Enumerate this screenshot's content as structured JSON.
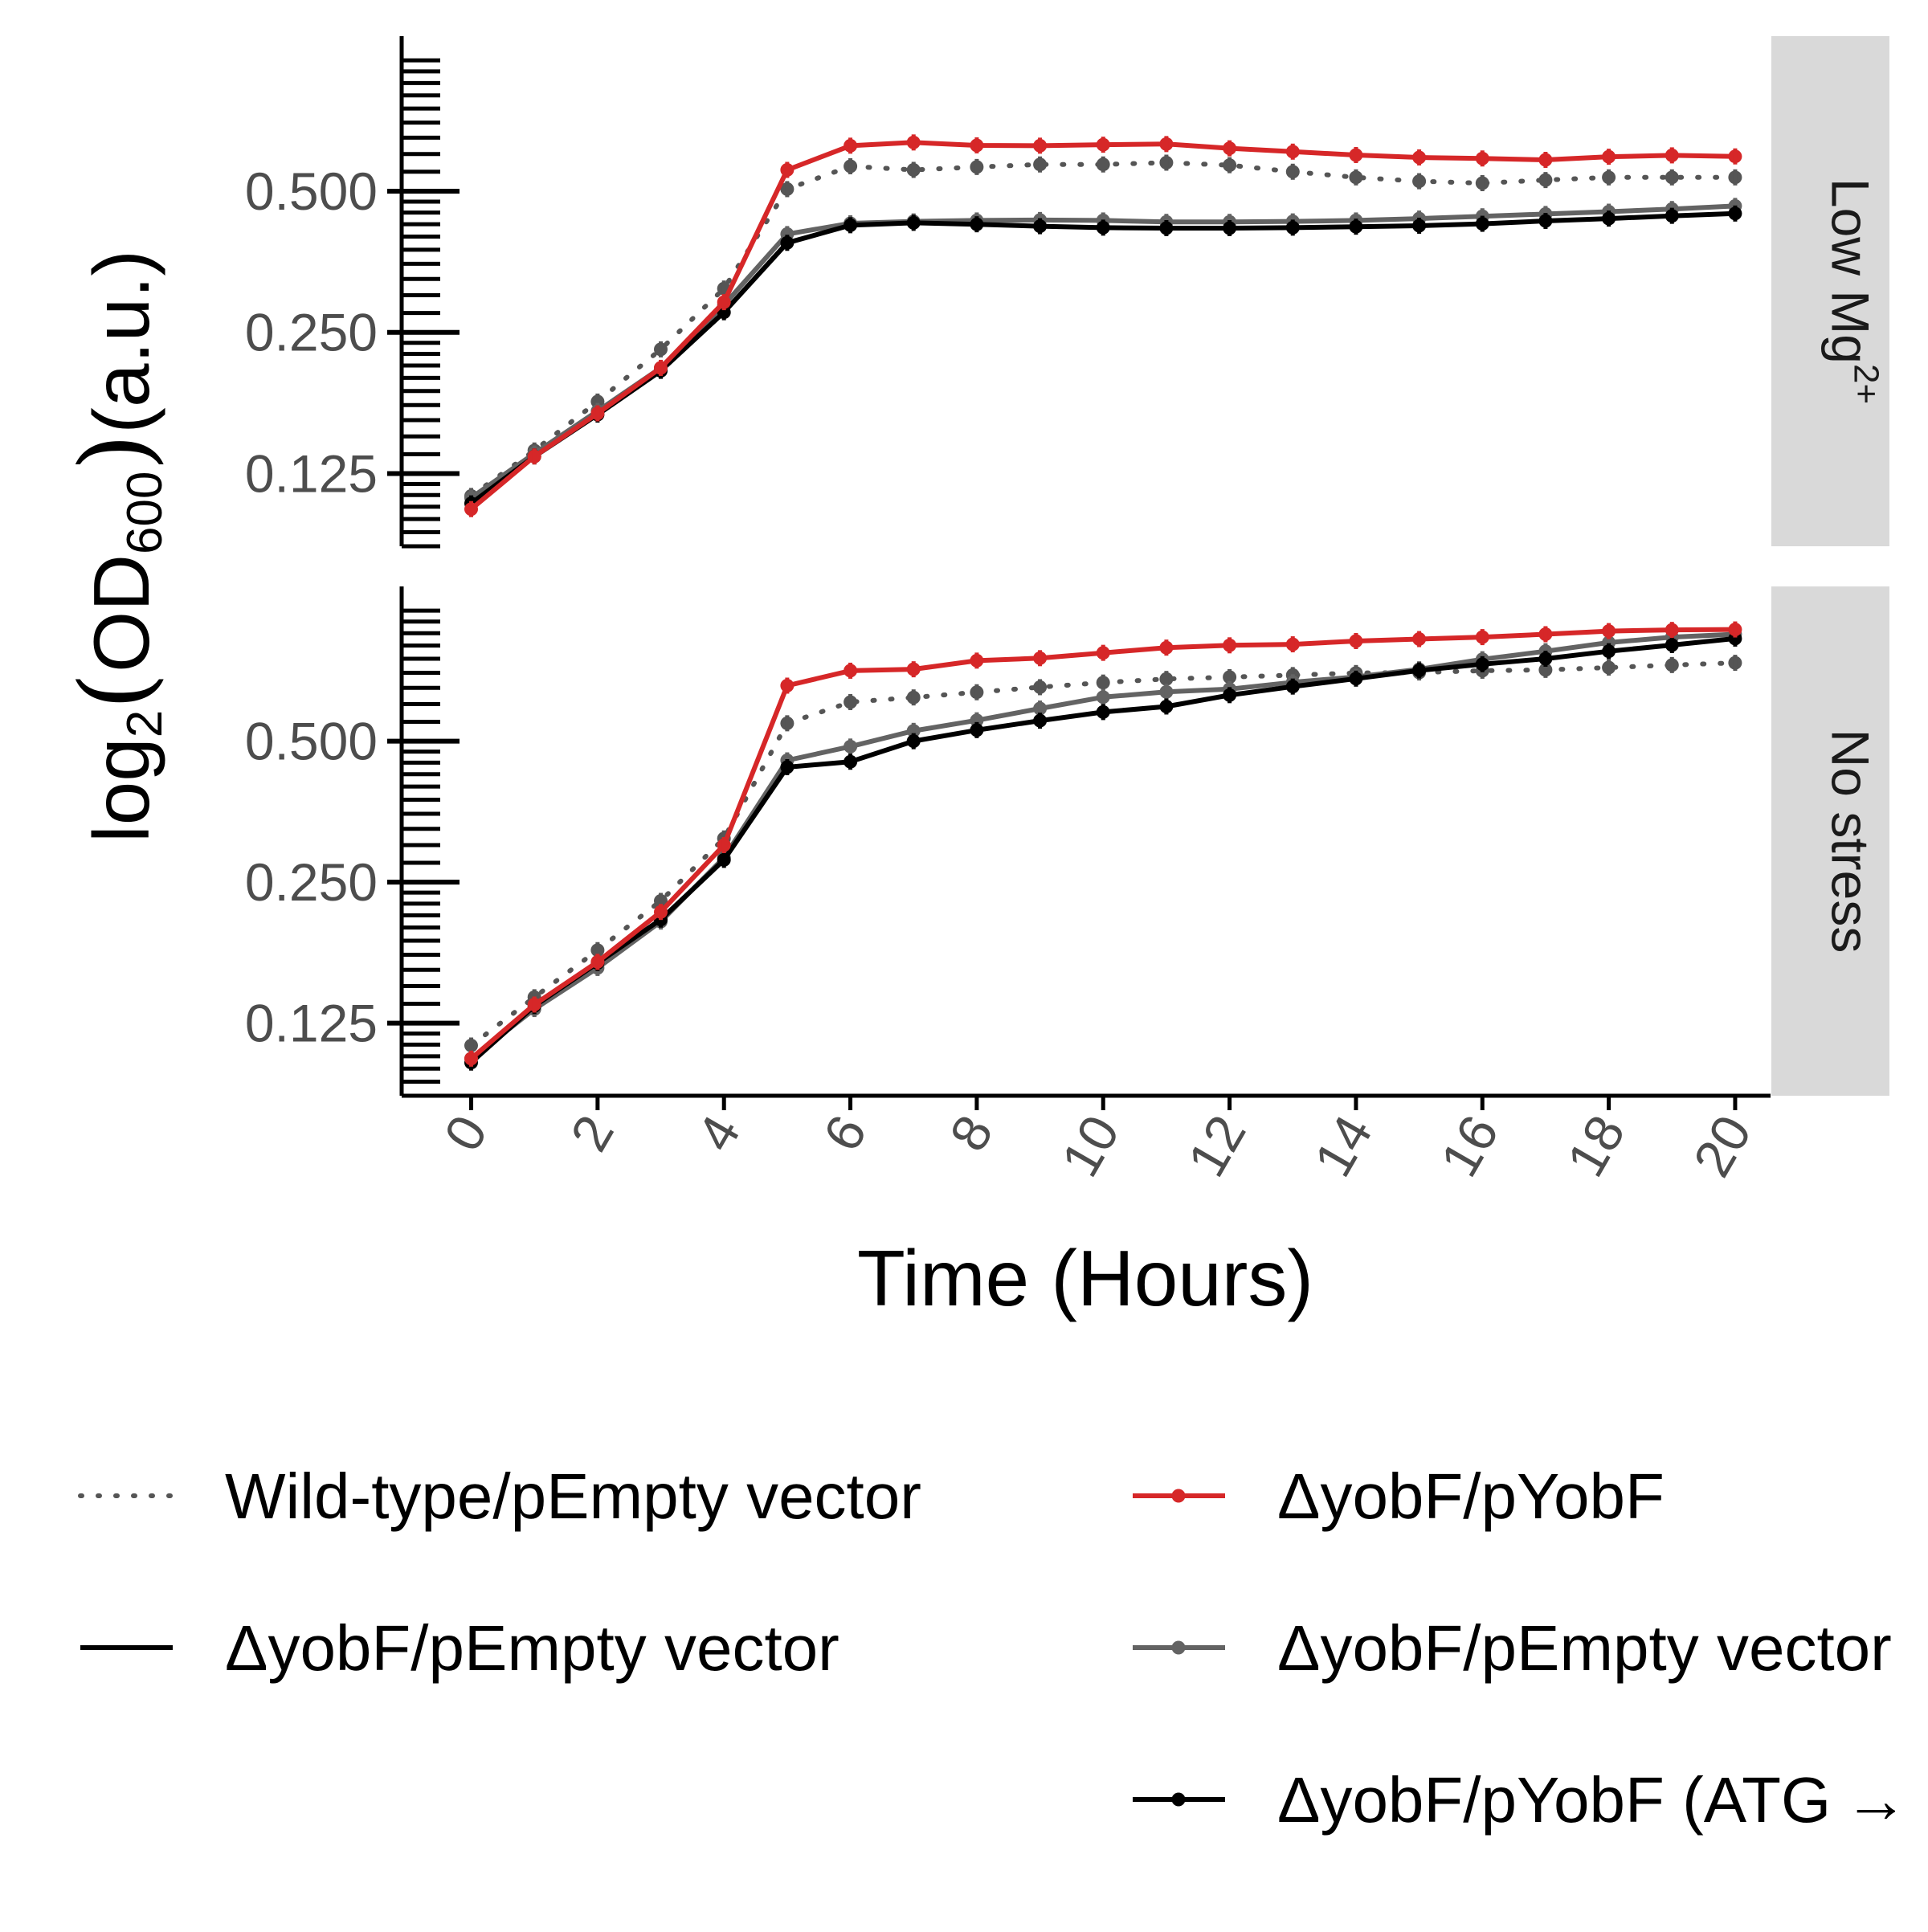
{
  "chart_data": {
    "type": "line",
    "x_title": "Time (Hours)",
    "y_title": {
      "prefix": "log",
      "prefix_sub": "2",
      "open": "(",
      "main": "OD",
      "main_sub": "600",
      "close": ")",
      "unit": "(a.u.)"
    },
    "x_ticks": [
      "0",
      "2",
      "4",
      "6",
      "8",
      "10",
      "12",
      "14",
      "16",
      "18",
      "20"
    ],
    "x_range": [
      -1.1,
      20.56
    ],
    "y_scale": "log2",
    "y_ticks": [
      "0.500",
      "0.250",
      "0.125"
    ],
    "y_tick_values": [
      0.5,
      0.25,
      0.125
    ],
    "grid": false,
    "legend_position": "bottom",
    "facets": [
      {
        "label": "Low Mg",
        "label_sup": "2+",
        "y_range": [
          0.0875,
          1.07
        ],
        "series": [
          {
            "key": "wt",
            "x": [
              0,
              1,
              2,
              3,
              4,
              5,
              6,
              7,
              8,
              9,
              10,
              11,
              12,
              13,
              14,
              15,
              16,
              17,
              18,
              19,
              20
            ],
            "values": [
              0.112,
              0.14,
              0.178,
              0.23,
              0.31,
              0.505,
              0.565,
              0.555,
              0.563,
              0.57,
              0.57,
              0.575,
              0.568,
              0.55,
              0.535,
              0.525,
              0.52,
              0.528,
              0.535,
              0.535,
              0.535
            ]
          },
          {
            "key": "pyobf",
            "x": [
              0,
              1,
              2,
              3,
              4,
              5,
              6,
              7,
              8,
              9,
              10,
              11,
              12,
              13,
              14,
              15,
              16,
              17,
              18,
              19,
              20
            ],
            "values": [
              0.105,
              0.136,
              0.168,
              0.21,
              0.29,
              0.555,
              0.625,
              0.635,
              0.626,
              0.625,
              0.628,
              0.63,
              0.617,
              0.607,
              0.597,
              0.59,
              0.587,
              0.583,
              0.592,
              0.596,
              0.593
            ]
          },
          {
            "key": "empty_gray",
            "x": [
              0,
              1,
              2,
              3,
              4,
              5,
              6,
              7,
              8,
              9,
              10,
              11,
              12,
              13,
              14,
              15,
              16,
              17,
              18,
              19,
              20
            ],
            "values": [
              0.111,
              0.138,
              0.17,
              0.21,
              0.286,
              0.405,
              0.427,
              0.431,
              0.433,
              0.434,
              0.433,
              0.43,
              0.43,
              0.431,
              0.433,
              0.437,
              0.442,
              0.447,
              0.452,
              0.458,
              0.465
            ]
          },
          {
            "key": "atg",
            "x": [
              0,
              1,
              2,
              3,
              4,
              5,
              6,
              7,
              8,
              9,
              10,
              11,
              12,
              13,
              14,
              15,
              16,
              17,
              18,
              19,
              20
            ],
            "values": [
              0.108,
              0.136,
              0.167,
              0.207,
              0.276,
              0.388,
              0.423,
              0.428,
              0.425,
              0.421,
              0.418,
              0.417,
              0.417,
              0.418,
              0.42,
              0.422,
              0.426,
              0.432,
              0.437,
              0.443,
              0.448
            ]
          }
        ]
      },
      {
        "label": "No stress",
        "label_sup": "",
        "y_range": [
          0.0875,
          1.07
        ],
        "series": [
          {
            "key": "wt",
            "x": [
              0,
              1,
              2,
              3,
              4,
              5,
              6,
              7,
              8,
              9,
              10,
              11,
              12,
              13,
              14,
              15,
              16,
              17,
              18,
              19,
              20
            ],
            "values": [
              0.112,
              0.142,
              0.179,
              0.228,
              0.31,
              0.546,
              0.606,
              0.62,
              0.636,
              0.652,
              0.667,
              0.679,
              0.685,
              0.692,
              0.699,
              0.701,
              0.707,
              0.71,
              0.718,
              0.727,
              0.735
            ]
          },
          {
            "key": "pyobf",
            "x": [
              0,
              1,
              2,
              3,
              4,
              5,
              6,
              7,
              8,
              9,
              10,
              11,
              12,
              13,
              14,
              15,
              16,
              17,
              18,
              19,
              20
            ],
            "values": [
              0.105,
              0.137,
              0.169,
              0.216,
              0.3,
              0.657,
              0.707,
              0.712,
              0.743,
              0.752,
              0.772,
              0.792,
              0.801,
              0.805,
              0.818,
              0.826,
              0.834,
              0.846,
              0.859,
              0.864,
              0.866
            ]
          },
          {
            "key": "empty_gray",
            "x": [
              0,
              1,
              2,
              3,
              4,
              5,
              6,
              7,
              8,
              9,
              10,
              11,
              12,
              13,
              14,
              15,
              16,
              17,
              18,
              19,
              20
            ],
            "values": [
              0.105,
              0.134,
              0.164,
              0.206,
              0.282,
              0.455,
              0.487,
              0.526,
              0.554,
              0.587,
              0.621,
              0.637,
              0.646,
              0.668,
              0.686,
              0.712,
              0.748,
              0.778,
              0.812,
              0.834,
              0.846
            ]
          },
          {
            "key": "atg",
            "x": [
              0,
              1,
              2,
              3,
              4,
              5,
              6,
              7,
              8,
              9,
              10,
              11,
              12,
              13,
              14,
              15,
              16,
              17,
              18,
              19,
              20
            ],
            "values": [
              0.103,
              0.136,
              0.168,
              0.208,
              0.279,
              0.44,
              0.452,
              0.5,
              0.528,
              0.553,
              0.577,
              0.593,
              0.627,
              0.654,
              0.68,
              0.708,
              0.73,
              0.75,
              0.778,
              0.802,
              0.828
            ]
          }
        ]
      }
    ],
    "legend": [
      {
        "key": "wt",
        "label": "Wild-type/pEmpty vector",
        "color": "#555555",
        "dash": "dotted",
        "points": false
      },
      {
        "key": "empty_black",
        "label": "ΔyobF/pEmpty vector",
        "color": "#000000",
        "dash": "solid",
        "points": false
      },
      {
        "key": "pyobf",
        "label": "ΔyobF/pYobF",
        "color": "#d62728",
        "dash": "solid",
        "points": true
      },
      {
        "key": "empty_gray",
        "label": "ΔyobF/pEmpty vector",
        "color": "#636363",
        "dash": "solid",
        "points": true
      },
      {
        "key": "atg",
        "label": "ΔyobF/pYobF (ATG →",
        "color": "#000000",
        "dash": "solid",
        "points": true
      }
    ]
  }
}
